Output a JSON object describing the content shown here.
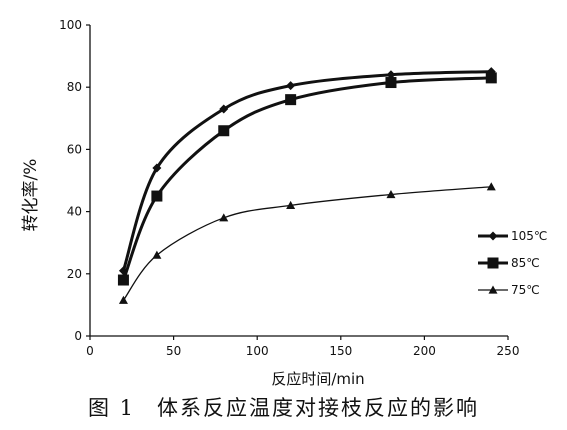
{
  "caption": {
    "figure_number": "图 1",
    "text": "体系反应温度对接枝反应的影响"
  },
  "chart_data": {
    "type": "line",
    "title": "",
    "xlabel": "反应时间/min",
    "ylabel": "转化率/%",
    "xlim": [
      0,
      250
    ],
    "ylim": [
      0,
      100
    ],
    "xticks": [
      0,
      50,
      100,
      150,
      200,
      250
    ],
    "yticks": [
      0,
      20,
      40,
      60,
      80,
      100
    ],
    "grid": false,
    "legend_position": "right",
    "series": [
      {
        "name": "105℃",
        "marker": "diamond",
        "line": "thick",
        "x": [
          20,
          40,
          80,
          120,
          180,
          240
        ],
        "y": [
          21,
          54,
          73,
          80.5,
          84,
          85
        ]
      },
      {
        "name": "85℃",
        "marker": "square",
        "line": "thick",
        "x": [
          20,
          40,
          80,
          120,
          180,
          240
        ],
        "y": [
          18,
          45,
          66,
          76,
          81.5,
          83
        ]
      },
      {
        "name": "75℃",
        "marker": "triangle",
        "line": "thin",
        "x": [
          20,
          40,
          80,
          120,
          180,
          240
        ],
        "y": [
          11.5,
          26,
          38,
          42,
          45.5,
          48
        ]
      }
    ]
  }
}
